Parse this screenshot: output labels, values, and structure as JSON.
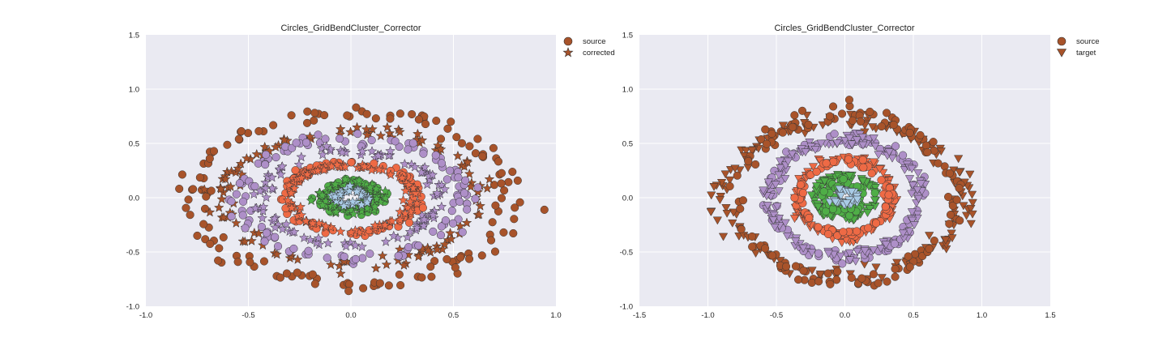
{
  "colors": {
    "axes_bg": "#EAEAF2",
    "grid": "#FFFFFF",
    "outer_ring": "#A8532A",
    "purple_ring": "#AE8FC8",
    "orange_ring": "#EE6A45",
    "green_core": "#4FAE47",
    "blue_core": "#A9CBE6",
    "edge": "#333333"
  },
  "chart_data": [
    {
      "type": "scatter",
      "title": "Circles_GridBendCluster_Corrector",
      "xlim": [
        -1.0,
        1.0
      ],
      "ylim": [
        -1.0,
        1.5
      ],
      "xticks": [
        "-1.0",
        "-0.5",
        "0.0",
        "0.5",
        "1.0"
      ],
      "yticks": [
        "-1.0",
        "-0.5",
        "0.0",
        "0.5",
        "1.0",
        "1.5"
      ],
      "grid": true,
      "legend_position": "outside-top-right",
      "legend": [
        {
          "label": "source",
          "marker": "circle-icon"
        },
        {
          "label": "corrected",
          "marker": "star-icon"
        }
      ],
      "series": [
        {
          "name": "source",
          "marker": "circle",
          "rings": [
            {
              "radius_x": 0.78,
              "radius_y": 0.78,
              "color": "outer_ring"
            },
            {
              "radius_x": 0.55,
              "radius_y": 0.55,
              "color": "purple_ring"
            },
            {
              "radius_x": 0.33,
              "radius_y": 0.33,
              "color": "orange_ring"
            },
            {
              "radius_x": 0.13,
              "radius_y": 0.13,
              "color": "green_core"
            }
          ]
        },
        {
          "name": "corrected",
          "marker": "star",
          "rings": [
            {
              "radius_x": 0.62,
              "radius_y": 0.62,
              "color": "outer_ring"
            },
            {
              "radius_x": 0.43,
              "radius_y": 0.43,
              "color": "purple_ring"
            },
            {
              "radius_x": 0.3,
              "radius_y": 0.3,
              "color": "orange_ring"
            },
            {
              "radius_x": 0.12,
              "radius_y": 0.12,
              "color": "green_core"
            },
            {
              "radius_x": 0.07,
              "radius_y": 0.07,
              "color": "blue_core"
            }
          ]
        }
      ]
    },
    {
      "type": "scatter",
      "title": "Circles_GridBendCluster_Corrector",
      "xlim": [
        -1.5,
        1.5
      ],
      "ylim": [
        -1.0,
        1.5
      ],
      "xticks": [
        "-1.5",
        "-1.0",
        "-0.5",
        "0.0",
        "0.5",
        "1.0",
        "1.5"
      ],
      "yticks": [
        "-1.0",
        "-0.5",
        "0.0",
        "0.5",
        "1.0",
        "1.5"
      ],
      "grid": true,
      "legend_position": "outside-top-right",
      "legend": [
        {
          "label": "source",
          "marker": "circle-icon"
        },
        {
          "label": "target",
          "marker": "triangle-down-icon"
        }
      ],
      "series": [
        {
          "name": "source",
          "marker": "circle",
          "rings": [
            {
              "radius_x": 0.78,
              "radius_y": 0.78,
              "color": "outer_ring"
            },
            {
              "radius_x": 0.55,
              "radius_y": 0.55,
              "color": "purple_ring"
            },
            {
              "radius_x": 0.33,
              "radius_y": 0.33,
              "color": "orange_ring"
            },
            {
              "radius_x": 0.13,
              "radius_y": 0.13,
              "color": "green_core"
            }
          ]
        },
        {
          "name": "target",
          "marker": "triangle-down",
          "rings": [
            {
              "radius_x": 0.88,
              "radius_y": 0.7,
              "color": "outer_ring"
            },
            {
              "radius_x": 0.55,
              "radius_y": 0.52,
              "color": "purple_ring"
            },
            {
              "radius_x": 0.35,
              "radius_y": 0.38,
              "color": "orange_ring"
            },
            {
              "radius_x": 0.22,
              "radius_y": 0.2,
              "color": "green_core"
            },
            {
              "radius_x": 0.08,
              "radius_y": 0.06,
              "color": "blue_core"
            }
          ]
        }
      ]
    }
  ]
}
